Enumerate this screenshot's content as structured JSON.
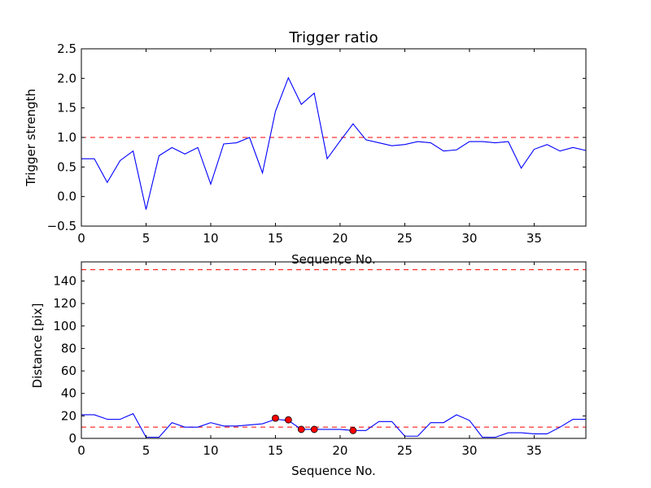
{
  "chart_data": [
    {
      "type": "line",
      "title": "Trigger ratio",
      "xlabel": "Sequence No.",
      "ylabel": "Trigger strength",
      "xlim": [
        0,
        39
      ],
      "ylim": [
        -0.5,
        2.5
      ],
      "xticks": [
        0,
        5,
        10,
        15,
        20,
        25,
        30,
        35
      ],
      "xtick_labels": [
        "0",
        "5",
        "10",
        "15",
        "20",
        "25",
        "30",
        "35"
      ],
      "yticks": [
        -0.5,
        0.0,
        0.5,
        1.0,
        1.5,
        2.0,
        2.5
      ],
      "ytick_labels": [
        "−0.5",
        "0.0",
        "0.5",
        "1.0",
        "1.5",
        "2.0",
        "2.5"
      ],
      "grid": false,
      "series": [
        {
          "color": "#0000ff",
          "style": "solid",
          "x": [
            0,
            1,
            2,
            3,
            4,
            5,
            6,
            7,
            8,
            9,
            10,
            11,
            12,
            13,
            14,
            15,
            16,
            17,
            18,
            19,
            20,
            21,
            22,
            23,
            24,
            25,
            26,
            27,
            28,
            29,
            30,
            31,
            32,
            33,
            34,
            35,
            36,
            37,
            38,
            39
          ],
          "y": [
            0.64,
            0.64,
            0.24,
            0.61,
            0.77,
            -0.22,
            0.69,
            0.83,
            0.72,
            0.83,
            0.21,
            0.89,
            0.91,
            1.0,
            0.4,
            1.44,
            2.01,
            1.56,
            1.75,
            0.64,
            0.94,
            1.23,
            0.96,
            0.91,
            0.86,
            0.88,
            0.93,
            0.91,
            0.77,
            0.79,
            0.93,
            0.93,
            0.91,
            0.93,
            0.48,
            0.8,
            0.88,
            0.77,
            0.83,
            0.78
          ]
        }
      ],
      "hlines": [
        {
          "y": 1.0,
          "color": "#ff0000",
          "style": "dashed"
        }
      ]
    },
    {
      "type": "line",
      "title": "",
      "xlabel": "Sequence No.",
      "ylabel": "Distance [pix]",
      "xlim": [
        0,
        39
      ],
      "ylim": [
        0,
        157
      ],
      "xticks": [
        0,
        5,
        10,
        15,
        20,
        25,
        30,
        35
      ],
      "xtick_labels": [
        "0",
        "5",
        "10",
        "15",
        "20",
        "25",
        "30",
        "35"
      ],
      "yticks": [
        0,
        20,
        40,
        60,
        80,
        100,
        120,
        140
      ],
      "ytick_labels": [
        "0",
        "20",
        "40",
        "60",
        "80",
        "100",
        "120",
        "140"
      ],
      "grid": false,
      "series": [
        {
          "color": "#0000ff",
          "style": "solid",
          "x": [
            0,
            1,
            2,
            3,
            4,
            5,
            6,
            7,
            8,
            9,
            10,
            11,
            12,
            13,
            14,
            15,
            16,
            17,
            18,
            19,
            20,
            21,
            22,
            23,
            24,
            25,
            26,
            27,
            28,
            29,
            30,
            31,
            32,
            33,
            34,
            35,
            36,
            37,
            38,
            39
          ],
          "y": [
            21,
            21,
            17,
            17,
            22,
            1,
            1,
            14,
            10,
            10,
            14,
            11,
            11,
            12,
            13,
            17,
            16,
            8,
            8,
            8,
            8,
            7,
            7,
            15,
            15,
            2,
            2,
            14,
            14,
            21,
            16,
            1,
            1,
            5,
            5,
            4,
            4,
            10,
            17,
            17
          ]
        }
      ],
      "markers": {
        "color": "#ff0000",
        "x": [
          15,
          16,
          17,
          18,
          21
        ],
        "y": [
          18,
          16.5,
          8,
          8,
          7
        ]
      },
      "hlines": [
        {
          "y": 150,
          "color": "#ff0000",
          "style": "dashed"
        },
        {
          "y": 10,
          "color": "#ff0000",
          "style": "dashed"
        }
      ]
    }
  ]
}
